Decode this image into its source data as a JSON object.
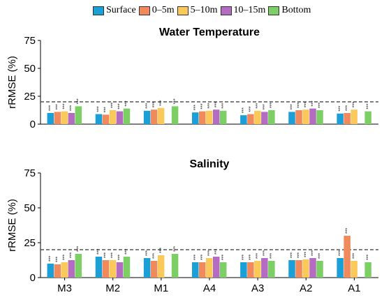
{
  "legend": [
    {
      "label": "Surface",
      "color": "#1a9fd6"
    },
    {
      "label": "0–5m",
      "color": "#f08a5d"
    },
    {
      "label": "5–10m",
      "color": "#fac95a"
    },
    {
      "label": "10–15m",
      "color": "#b36cc1"
    },
    {
      "label": "Bottom",
      "color": "#7ccf64"
    }
  ],
  "chart_data": [
    {
      "type": "bar",
      "title": "Water Temperature",
      "xlabel": "",
      "ylabel": "rRMSE (%)",
      "ylim": [
        0,
        75
      ],
      "yticks": [
        0,
        25,
        50,
        75
      ],
      "reference_line": 20,
      "categories": [
        "M3",
        "M2",
        "M1",
        "A4",
        "A3",
        "A2",
        "A1"
      ],
      "series": [
        {
          "name": "Surface",
          "values": [
            10,
            9,
            12,
            10.5,
            8,
            11,
            9.5
          ]
        },
        {
          "name": "0–5m",
          "values": [
            11,
            8.5,
            13,
            11.5,
            9,
            12.5,
            10
          ]
        },
        {
          "name": "5–10m",
          "values": [
            11.5,
            12.5,
            14.5,
            12,
            12,
            13,
            13
          ]
        },
        {
          "name": "10–15m",
          "values": [
            10,
            11.5,
            null,
            13,
            11,
            14,
            null
          ]
        },
        {
          "name": "Bottom",
          "values": [
            16,
            14,
            16,
            12,
            12.5,
            12.5,
            11.5
          ]
        }
      ],
      "significance_label": "***"
    },
    {
      "type": "bar",
      "title": "Salinity",
      "xlabel": "",
      "ylabel": "rRMSE (%)",
      "ylim": [
        0,
        75
      ],
      "yticks": [
        0,
        25,
        50,
        75
      ],
      "reference_line": 20,
      "categories": [
        "M3",
        "M2",
        "M1",
        "A4",
        "A3",
        "A2",
        "A1"
      ],
      "series": [
        {
          "name": "Surface",
          "values": [
            10,
            15,
            14,
            11,
            11,
            12.5,
            14
          ]
        },
        {
          "name": "0–5m",
          "values": [
            9.5,
            12.5,
            12,
            11,
            11,
            12.5,
            30
          ]
        },
        {
          "name": "5–10m",
          "values": [
            11,
            12.5,
            16,
            14,
            12,
            13,
            12
          ]
        },
        {
          "name": "10–15m",
          "values": [
            12.5,
            11,
            null,
            15,
            14,
            14,
            null
          ]
        },
        {
          "name": "Bottom",
          "values": [
            17,
            15,
            17,
            11,
            12,
            12,
            11
          ]
        }
      ],
      "significance_label": "***"
    }
  ]
}
